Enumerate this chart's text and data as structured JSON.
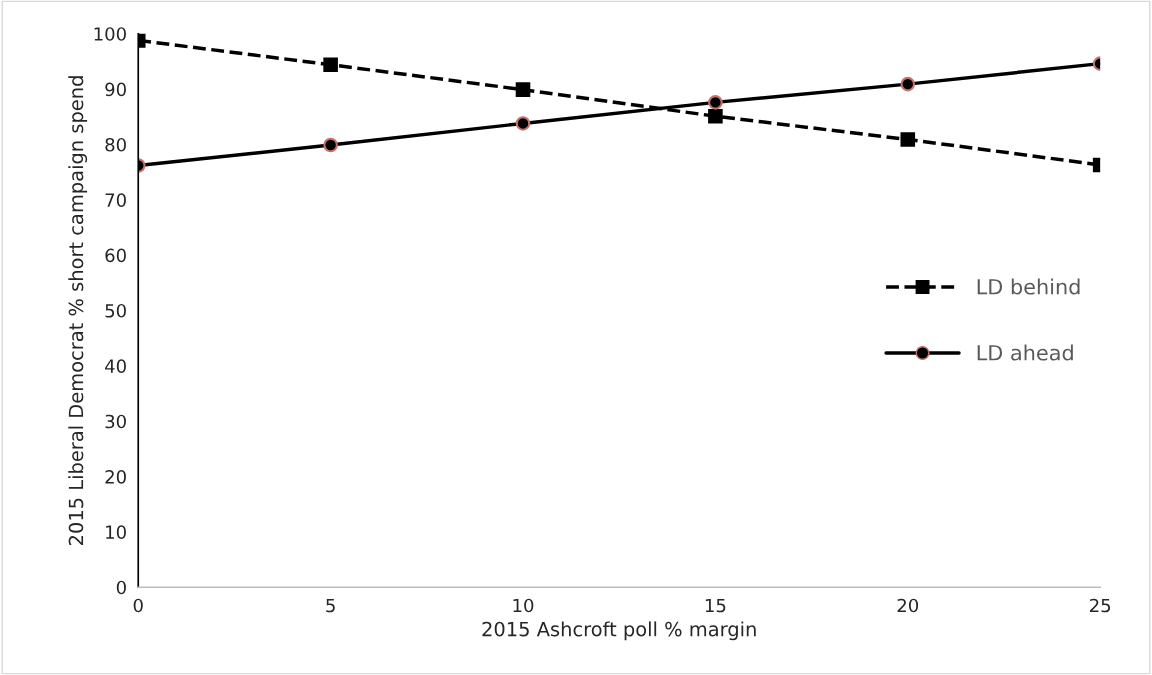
{
  "chart_data": {
    "type": "line",
    "xlabel": "2015 Ashcroft poll % margin",
    "ylabel": "2015 Liberal Democrat % short campaign spend",
    "x": [
      0,
      5,
      10,
      15,
      20,
      25
    ],
    "series": [
      {
        "name": "LD behind",
        "color": "#000000",
        "marker": "square",
        "line_style": "dashed",
        "values": [
          98.8,
          94.4,
          89.9,
          85.1,
          80.9,
          76.3
        ]
      },
      {
        "name": "LD ahead",
        "color": "#000000",
        "marker": "circle",
        "line_style": "solid",
        "values": [
          76.2,
          79.9,
          83.8,
          87.6,
          90.9,
          94.6
        ]
      }
    ],
    "xlim": [
      0,
      25
    ],
    "xticks": [
      0,
      5,
      10,
      15,
      20,
      25
    ],
    "ylim": [
      0,
      100
    ],
    "yticks": [
      0,
      10,
      20,
      30,
      40,
      50,
      60,
      70,
      80,
      90,
      100
    ],
    "grid": false,
    "legend": "right"
  }
}
